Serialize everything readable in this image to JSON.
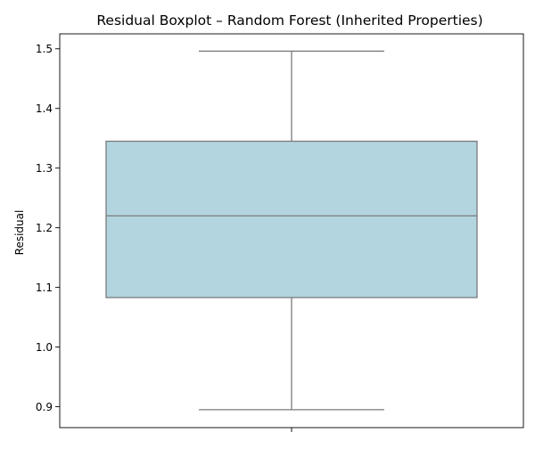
{
  "chart_data": {
    "type": "boxplot",
    "title": "Residual Boxplot – Random Forest (Inherited Properties)",
    "xlabel": "",
    "ylabel": "Residual",
    "ylim": [
      0.865,
      1.525
    ],
    "yticks": [
      0.9,
      1.0,
      1.1,
      1.2,
      1.3,
      1.4,
      1.5
    ],
    "ytick_labels": [
      "0.9",
      "1.0",
      "1.1",
      "1.2",
      "1.3",
      "1.4",
      "1.5"
    ],
    "categories": [
      ""
    ],
    "boxes": [
      {
        "whisker_low": 0.895,
        "q1": 1.083,
        "median": 1.22,
        "q3": 1.345,
        "whisker_high": 1.496
      }
    ],
    "grid": false,
    "legend": "none",
    "colors": {
      "box_fill": "#b3d5e0",
      "line": "#7a7a7a",
      "axis": "#000000"
    }
  }
}
